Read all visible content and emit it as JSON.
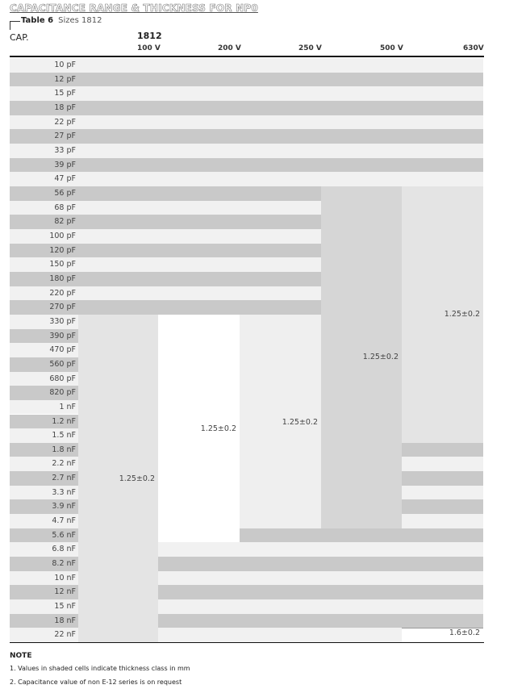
{
  "title": "CAPACITANCE RANGE & THICKNESS FOR NP0",
  "table_label": "Table 6",
  "table_sizes": "Sizes 1812",
  "cap_header": "CAP.",
  "size_header": "1812",
  "voltages": [
    "100 V",
    "200 V",
    "250 V",
    "500 V",
    "630V"
  ],
  "capacitances": [
    "10 pF",
    "12 pF",
    "15 pF",
    "18 pF",
    "22 pF",
    "27 pF",
    "33 pF",
    "39 pF",
    "47 pF",
    "56 pF",
    "68 pF",
    "82 pF",
    "100 pF",
    "120 pF",
    "150 pF",
    "180 pF",
    "220 pF",
    "270 pF",
    "330 pF",
    "390 pF",
    "470 pF",
    "560 pF",
    "680 pF",
    "820 pF",
    "1 nF",
    "1.2 nF",
    "1.5 nF",
    "1.8 nF",
    "2.2 nF",
    "2.7 nF",
    "3.3 nF",
    "3.9 nF",
    "4.7 nF",
    "5.6 nF",
    "6.8 nF",
    "8.2 nF",
    "10 nF",
    "12 nF",
    "15 nF",
    "18 nF",
    "22 nF"
  ],
  "blocks": [
    {
      "voltage": "100 V",
      "from": "330 pF",
      "to": "22 nF",
      "value": "1.25±0.2",
      "color": "#e4e4e4"
    },
    {
      "voltage": "200 V",
      "from": "330 pF",
      "to": "5.6 nF",
      "value": "1.25±0.2",
      "color": "#ffffff"
    },
    {
      "voltage": "250 V",
      "from": "330 pF",
      "to": "4.7 nF",
      "value": "1.25±0.2",
      "color": "#efefef"
    },
    {
      "voltage": "500 V",
      "from": "56 pF",
      "to": "4.7 nF",
      "value": "1.25±0.2",
      "color": "#d6d6d6"
    },
    {
      "voltage": "630V",
      "from": "56 pF",
      "to": "1.5 nF",
      "value": "1.25±0.2",
      "color": "#e4e4e4"
    },
    {
      "voltage": "630V",
      "from": "22 nF",
      "to": "22 nF",
      "value": "1.6±0.2",
      "color": "#ffffff"
    }
  ],
  "colors": {
    "stripe_light": "#f1f1f1",
    "stripe_dark": "#c9c9c9"
  },
  "notes": {
    "heading": "NOTE",
    "items": [
      "1. Values in shaded cells indicate thickness class in mm",
      "2. Capacitance value of non E-12 series is on request"
    ]
  }
}
